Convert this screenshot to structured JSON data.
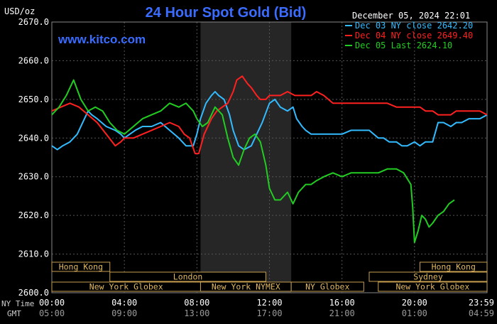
{
  "chart_data": {
    "type": "line",
    "title": "24 Hour Spot Gold (Bid)",
    "ylabel": "USD/oz",
    "watermark": "www.kitco.com",
    "timestamp": "December 05, 2024 22:01",
    "ylim": [
      2600,
      2670
    ],
    "yticks": [
      {
        "v": 2670,
        "label": "2670.0"
      },
      {
        "v": 2660,
        "label": "2660.0"
      },
      {
        "v": 2650,
        "label": "2650.0"
      },
      {
        "v": 2640,
        "label": "2640.0"
      },
      {
        "v": 2630,
        "label": "2630.0"
      },
      {
        "v": 2620,
        "label": "2620.0"
      },
      {
        "v": 2610,
        "label": "2610.0"
      },
      {
        "v": 2600,
        "label": "2600.0"
      }
    ],
    "xlim": [
      0,
      24
    ],
    "xlabel_ny": "NY Time",
    "xlabel_gmt": "GMT",
    "xticks": [
      {
        "h": 0,
        "ny": "00:00",
        "gmt": "05:00"
      },
      {
        "h": 4,
        "ny": "04:00",
        "gmt": "09:00"
      },
      {
        "h": 8,
        "ny": "08:00",
        "gmt": "13:00"
      },
      {
        "h": 12,
        "ny": "12:00",
        "gmt": "17:00"
      },
      {
        "h": 16,
        "ny": "16:00",
        "gmt": "21:00"
      },
      {
        "h": 20,
        "ny": "20:00",
        "gmt": "01:00"
      },
      {
        "h": 24,
        "ny": "23:59",
        "gmt": "04:59"
      }
    ],
    "grid": true,
    "highlight_hours": [
      8.2,
      13.2
    ],
    "legend_position": "top-right",
    "series": [
      {
        "name": "Dec 03 NY close 2642.20",
        "color": "#33bbff",
        "x": [
          0,
          0.3,
          0.6,
          1,
          1.4,
          1.8,
          2,
          2.2,
          2.5,
          3,
          3.5,
          3.8,
          4,
          4.3,
          4.6,
          5,
          5.5,
          6,
          6.5,
          7,
          7.4,
          7.8,
          8,
          8.2,
          8.5,
          8.8,
          9,
          9.2,
          9.5,
          9.8,
          10,
          10.3,
          10.6,
          11,
          11.3,
          11.6,
          12,
          12.3,
          12.6,
          13,
          13.3,
          13.5,
          13.8,
          14,
          14.3,
          14.6,
          15,
          15.5,
          16,
          16.5,
          17,
          17.5,
          18,
          18.3,
          18.6,
          19,
          19.3,
          19.6,
          20,
          20.3,
          20.6,
          21,
          21.3,
          21.6,
          22,
          22.3,
          22.6,
          23,
          23.3,
          23.6,
          24
        ],
        "values": [
          2638,
          2637,
          2638,
          2639,
          2641,
          2645,
          2647,
          2646,
          2645,
          2643,
          2642,
          2641,
          2640,
          2641,
          2642,
          2643,
          2643,
          2644,
          2642,
          2640,
          2638,
          2638,
          2641,
          2645,
          2649,
          2651,
          2652,
          2651,
          2650,
          2646,
          2642,
          2638,
          2637,
          2638,
          2641,
          2644,
          2649,
          2650,
          2648,
          2647,
          2648,
          2645,
          2643,
          2642,
          2641,
          2641,
          2641,
          2641,
          2641,
          2642,
          2642,
          2642,
          2640,
          2640,
          2639,
          2639,
          2638,
          2638,
          2639,
          2638,
          2639,
          2639,
          2644,
          2644,
          2643,
          2644,
          2644,
          2645,
          2645,
          2645,
          2646
        ]
      },
      {
        "name": "Dec 04 NY close 2649.40",
        "color": "#ff2020",
        "x": [
          0,
          0.5,
          1,
          1.5,
          2,
          2.5,
          3,
          3.5,
          3.8,
          4,
          4.5,
          5,
          5.5,
          6,
          6.5,
          7,
          7.3,
          7.6,
          7.9,
          8.1,
          8.4,
          8.8,
          9.1,
          9.4,
          9.7,
          10,
          10.2,
          10.5,
          10.8,
          11,
          11.3,
          11.5,
          11.8,
          12,
          12.3,
          12.6,
          13,
          13.4,
          13.8,
          14,
          14.3,
          14.6,
          15,
          15.5,
          16,
          16.5,
          17,
          17.5,
          18,
          18.5,
          19,
          19.3,
          19.6,
          20,
          20.3,
          20.6,
          21,
          21.3,
          21.6,
          22,
          22.3,
          22.6,
          23,
          23.3,
          23.6,
          24
        ],
        "values": [
          2647,
          2648,
          2649,
          2648,
          2646,
          2644,
          2641,
          2638,
          2639,
          2640,
          2640,
          2641,
          2642,
          2643,
          2644,
          2643,
          2641,
          2640,
          2636,
          2636,
          2641,
          2645,
          2647,
          2648,
          2649,
          2652,
          2655,
          2656,
          2654,
          2653,
          2651,
          2650,
          2650,
          2651,
          2651,
          2651,
          2652,
          2651,
          2651,
          2651,
          2651,
          2652,
          2651,
          2649,
          2649,
          2649,
          2649,
          2649,
          2649,
          2649,
          2648,
          2648,
          2648,
          2648,
          2648,
          2647,
          2647,
          2646,
          2646,
          2646,
          2647,
          2647,
          2647,
          2647,
          2647,
          2646
        ]
      },
      {
        "name": "Dec 05 Last 2624.10",
        "color": "#22cc22",
        "x": [
          0,
          0.4,
          0.8,
          1.2,
          1.6,
          2,
          2.4,
          2.8,
          3.2,
          3.6,
          4,
          4.5,
          5,
          5.5,
          6,
          6.5,
          7,
          7.4,
          7.8,
          8,
          8.3,
          8.6,
          9,
          9.4,
          9.7,
          10,
          10.3,
          10.6,
          10.9,
          11.2,
          11.5,
          11.8,
          12,
          12.3,
          12.6,
          13,
          13.3,
          13.6,
          14,
          14.3,
          14.6,
          15,
          15.5,
          16,
          16.5,
          17,
          17.5,
          18,
          18.5,
          19,
          19.4,
          19.8,
          19.9,
          20,
          20.2,
          20.4,
          20.6,
          20.8,
          21,
          21.3,
          21.6,
          21.9,
          22.2
        ],
        "values": [
          2646,
          2648,
          2651,
          2655,
          2650,
          2647,
          2648,
          2647,
          2644,
          2642,
          2641,
          2643,
          2645,
          2646,
          2647,
          2649,
          2648,
          2649,
          2647,
          2645,
          2643,
          2644,
          2648,
          2646,
          2640,
          2635,
          2633,
          2637,
          2640,
          2641,
          2639,
          2633,
          2627,
          2624,
          2624,
          2626,
          2623,
          2626,
          2628,
          2628,
          2629,
          2630,
          2631,
          2630,
          2631,
          2631,
          2631,
          2631,
          2632,
          2632,
          2631,
          2628,
          2622,
          2613,
          2616,
          2620,
          2619,
          2617,
          2618,
          2620,
          2621,
          2623,
          2624
        ]
      }
    ],
    "sessions": [
      {
        "label": "Hong Kong",
        "start": 0,
        "end": 3.2,
        "row": 0
      },
      {
        "label": "Hong Kong",
        "start": 20.3,
        "end": 24,
        "row": 0
      },
      {
        "label": "London",
        "start": 3.2,
        "end": 11.8,
        "row": 1
      },
      {
        "label": "Sydney",
        "start": 17.5,
        "end": 24,
        "row": 1
      },
      {
        "label": "New York Globex",
        "start": 0,
        "end": 8.2,
        "row": 2
      },
      {
        "label": "New York NYMEX",
        "start": 8.2,
        "end": 13.2,
        "row": 2
      },
      {
        "label": "NY Globex",
        "start": 13.2,
        "end": 17.2,
        "row": 2
      },
      {
        "label": "New York Globex",
        "start": 18,
        "end": 24,
        "row": 2
      }
    ]
  }
}
